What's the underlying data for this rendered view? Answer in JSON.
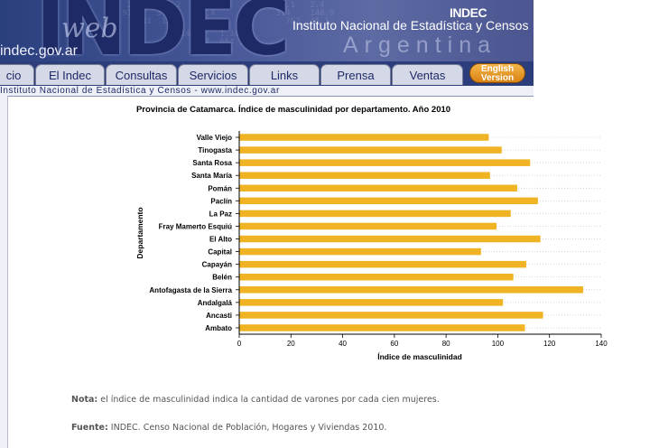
{
  "header": {
    "domain": "indec.gov.ar",
    "web_word": "web",
    "logo_big": "INDEC",
    "brand_small": "INDEC",
    "institute": "Instituto Nacional de Estadística y Censos",
    "country": "Argentina"
  },
  "nav": {
    "tabs": [
      {
        "label": "cio"
      },
      {
        "label": "El Indec"
      },
      {
        "label": "Consultas"
      },
      {
        "label": "Servicios"
      },
      {
        "label": "Links"
      },
      {
        "label": "Prensa"
      },
      {
        "label": "Ventas"
      }
    ],
    "english_line1": "English",
    "english_line2": "Version"
  },
  "strip_text": "Instituto Nacional de Estadística y Censos - www.indec.gov.ar",
  "chart_data": {
    "type": "bar",
    "orientation": "horizontal",
    "title": "Provincia de Catamarca. Índice de masculinidad por departamento. Año 2010",
    "xlabel": "Índice de masculinidad",
    "ylabel": "Departamento",
    "xlim": [
      0,
      140
    ],
    "xticks": [
      0,
      20,
      40,
      60,
      80,
      100,
      120,
      140
    ],
    "grid": true,
    "bar_color": "#f0b323",
    "categories": [
      "Valle Viejo",
      "Tinogasta",
      "Santa Rosa",
      "Santa María",
      "Pomán",
      "Paclín",
      "La Paz",
      "Fray Mamerto Esquiú",
      "El Alto",
      "Capital",
      "Capayán",
      "Belén",
      "Antofagasta de la Sierra",
      "Andalgalá",
      "Ancasti",
      "Ambato"
    ],
    "values": [
      96.5,
      101.5,
      112.5,
      97,
      107.5,
      115.5,
      105,
      99.5,
      116.5,
      93.5,
      111,
      106,
      133,
      102,
      117.5,
      110.5
    ]
  },
  "notes": {
    "note_label": "Nota:",
    "note_text": " el índice de masculinidad indica la cantidad de varones por cada cien mujeres.",
    "source_label": "Fuente:",
    "source_text": " INDEC. Censo Nacional de Población, Hogares y Viviendas 2010."
  }
}
